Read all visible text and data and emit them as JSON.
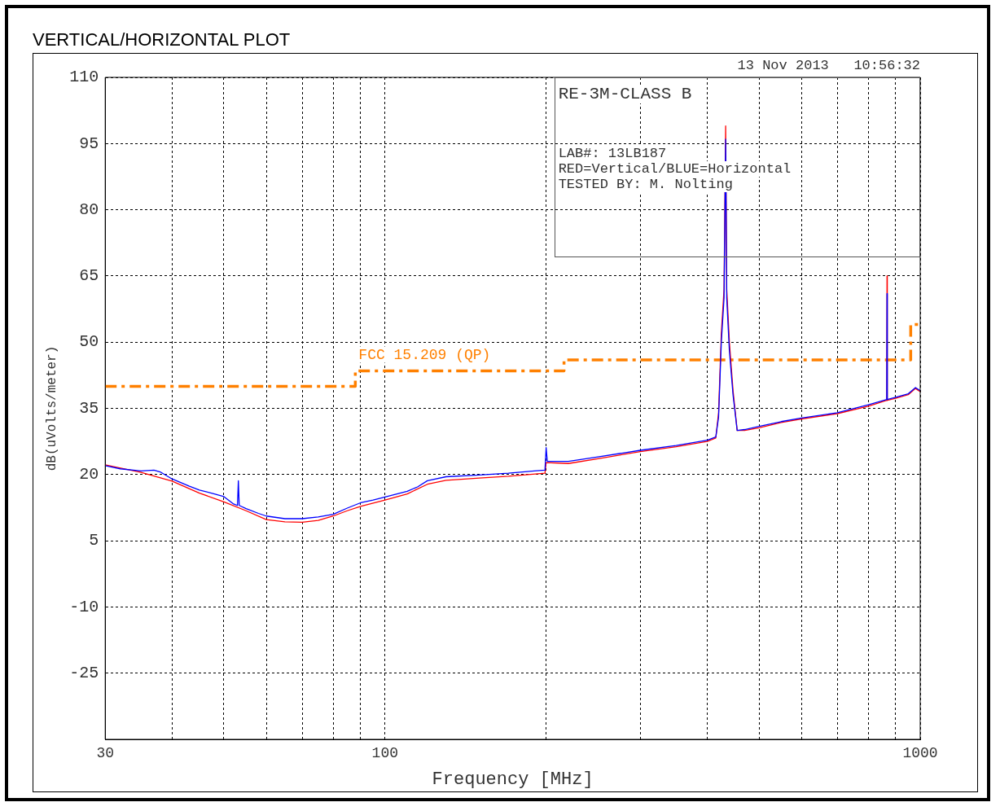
{
  "chart_data": {
    "type": "line",
    "title": "VERTICAL/HORIZONTAL PLOT",
    "xlabel": "Frequency [MHz]",
    "ylabel": "dB(uVolts/meter)",
    "log": "x",
    "grid": true,
    "legend": false,
    "marker": "none",
    "xlim": [
      30,
      1000
    ],
    "xticks": [
      30,
      {
        "value": 40,
        "label": null
      },
      {
        "value": 50,
        "label": null
      },
      {
        "value": 60,
        "label": null
      },
      {
        "value": 70,
        "label": null
      },
      {
        "value": 80,
        "label": null
      },
      {
        "value": 90,
        "label": null
      },
      100,
      {
        "value": 200,
        "label": null
      },
      {
        "value": 300,
        "label": null
      },
      {
        "value": 400,
        "label": null
      },
      {
        "value": 500,
        "label": null
      },
      {
        "value": 600,
        "label": null
      },
      {
        "value": 700,
        "label": null
      },
      {
        "value": 800,
        "label": null
      },
      {
        "value": 900,
        "label": null
      },
      1000
    ],
    "ylim": [
      -40,
      110
    ],
    "yticks": [
      {
        "value": -40,
        "label": null
      },
      -25,
      -10,
      5,
      20,
      35,
      50,
      65,
      80,
      95,
      110
    ],
    "annotations": [
      "13 Nov 2013   10:56:32",
      "RE-3M-CLASS B",
      "LAB#: 13LB187",
      "RED=Vertical/BLUE=Horizontal",
      "TESTED BY: M. Nolting"
    ],
    "series": [
      {
        "color": "#0000ff",
        "line_style": "solid",
        "x": [
          30,
          32,
          35,
          37,
          38,
          40,
          43,
          45,
          48,
          50,
          52,
          53,
          53.2,
          53.4,
          55,
          58,
          60,
          65,
          70,
          75,
          80,
          85,
          90,
          95,
          100,
          110,
          115,
          120,
          130,
          150,
          170,
          190,
          199,
          200,
          201,
          220,
          250,
          300,
          350,
          400,
          415,
          420,
          425,
          430,
          433,
          435,
          440,
          447,
          455,
          470,
          500,
          550,
          600,
          700,
          800,
          866,
          867,
          868,
          900,
          950,
          980,
          1000
        ],
        "values": [
          22,
          21.3,
          20.8,
          21,
          20.6,
          19,
          17.4,
          16.5,
          15.6,
          15,
          13.4,
          13,
          18.6,
          13,
          12.3,
          11.2,
          10.6,
          10,
          10,
          10.4,
          11,
          12.4,
          13.6,
          14.2,
          14.9,
          16.2,
          17.2,
          18.6,
          19.5,
          19.9,
          20.3,
          20.8,
          21,
          26.1,
          23,
          23,
          24,
          25.5,
          26.6,
          27.8,
          28.5,
          33,
          50,
          60,
          96,
          60,
          48,
          38,
          30,
          30.2,
          30.9,
          32,
          32.8,
          34,
          35.8,
          37,
          61,
          37,
          37.5,
          38.3,
          39.7,
          39
        ]
      },
      {
        "color": "#ff0000",
        "line_style": "solid",
        "x": [
          30,
          35,
          40,
          45,
          50,
          55,
          60,
          65,
          70,
          75,
          80,
          85,
          90,
          100,
          110,
          120,
          130,
          150,
          170,
          199,
          200,
          220,
          250,
          300,
          350,
          400,
          415,
          420,
          425,
          430,
          433,
          435,
          440,
          447,
          455,
          470,
          500,
          550,
          600,
          700,
          800,
          866,
          867,
          868,
          900,
          950,
          980,
          1000
        ],
        "values": [
          22.2,
          20.5,
          18.5,
          15.8,
          13.8,
          11.8,
          9.8,
          9.3,
          9.2,
          9.6,
          10.6,
          11.8,
          12.8,
          14.2,
          15.6,
          17.8,
          18.7,
          19.2,
          19.6,
          20.3,
          22.7,
          22.5,
          23.6,
          25.2,
          26.3,
          27.5,
          28.3,
          34,
          52,
          62,
          99,
          62,
          50,
          39,
          30,
          30,
          30.6,
          31.8,
          32.6,
          33.8,
          35.5,
          36.8,
          65,
          36.8,
          37.3,
          38.1,
          39.5,
          38.8
        ]
      },
      {
        "name": "FCC 15.209 (QP)",
        "type": "step",
        "color": "#ff8000",
        "line_style": "dashed",
        "x": [
          30,
          88,
          216,
          960,
          1000
        ],
        "values": [
          40,
          43.5,
          46,
          54,
          54
        ]
      }
    ]
  }
}
